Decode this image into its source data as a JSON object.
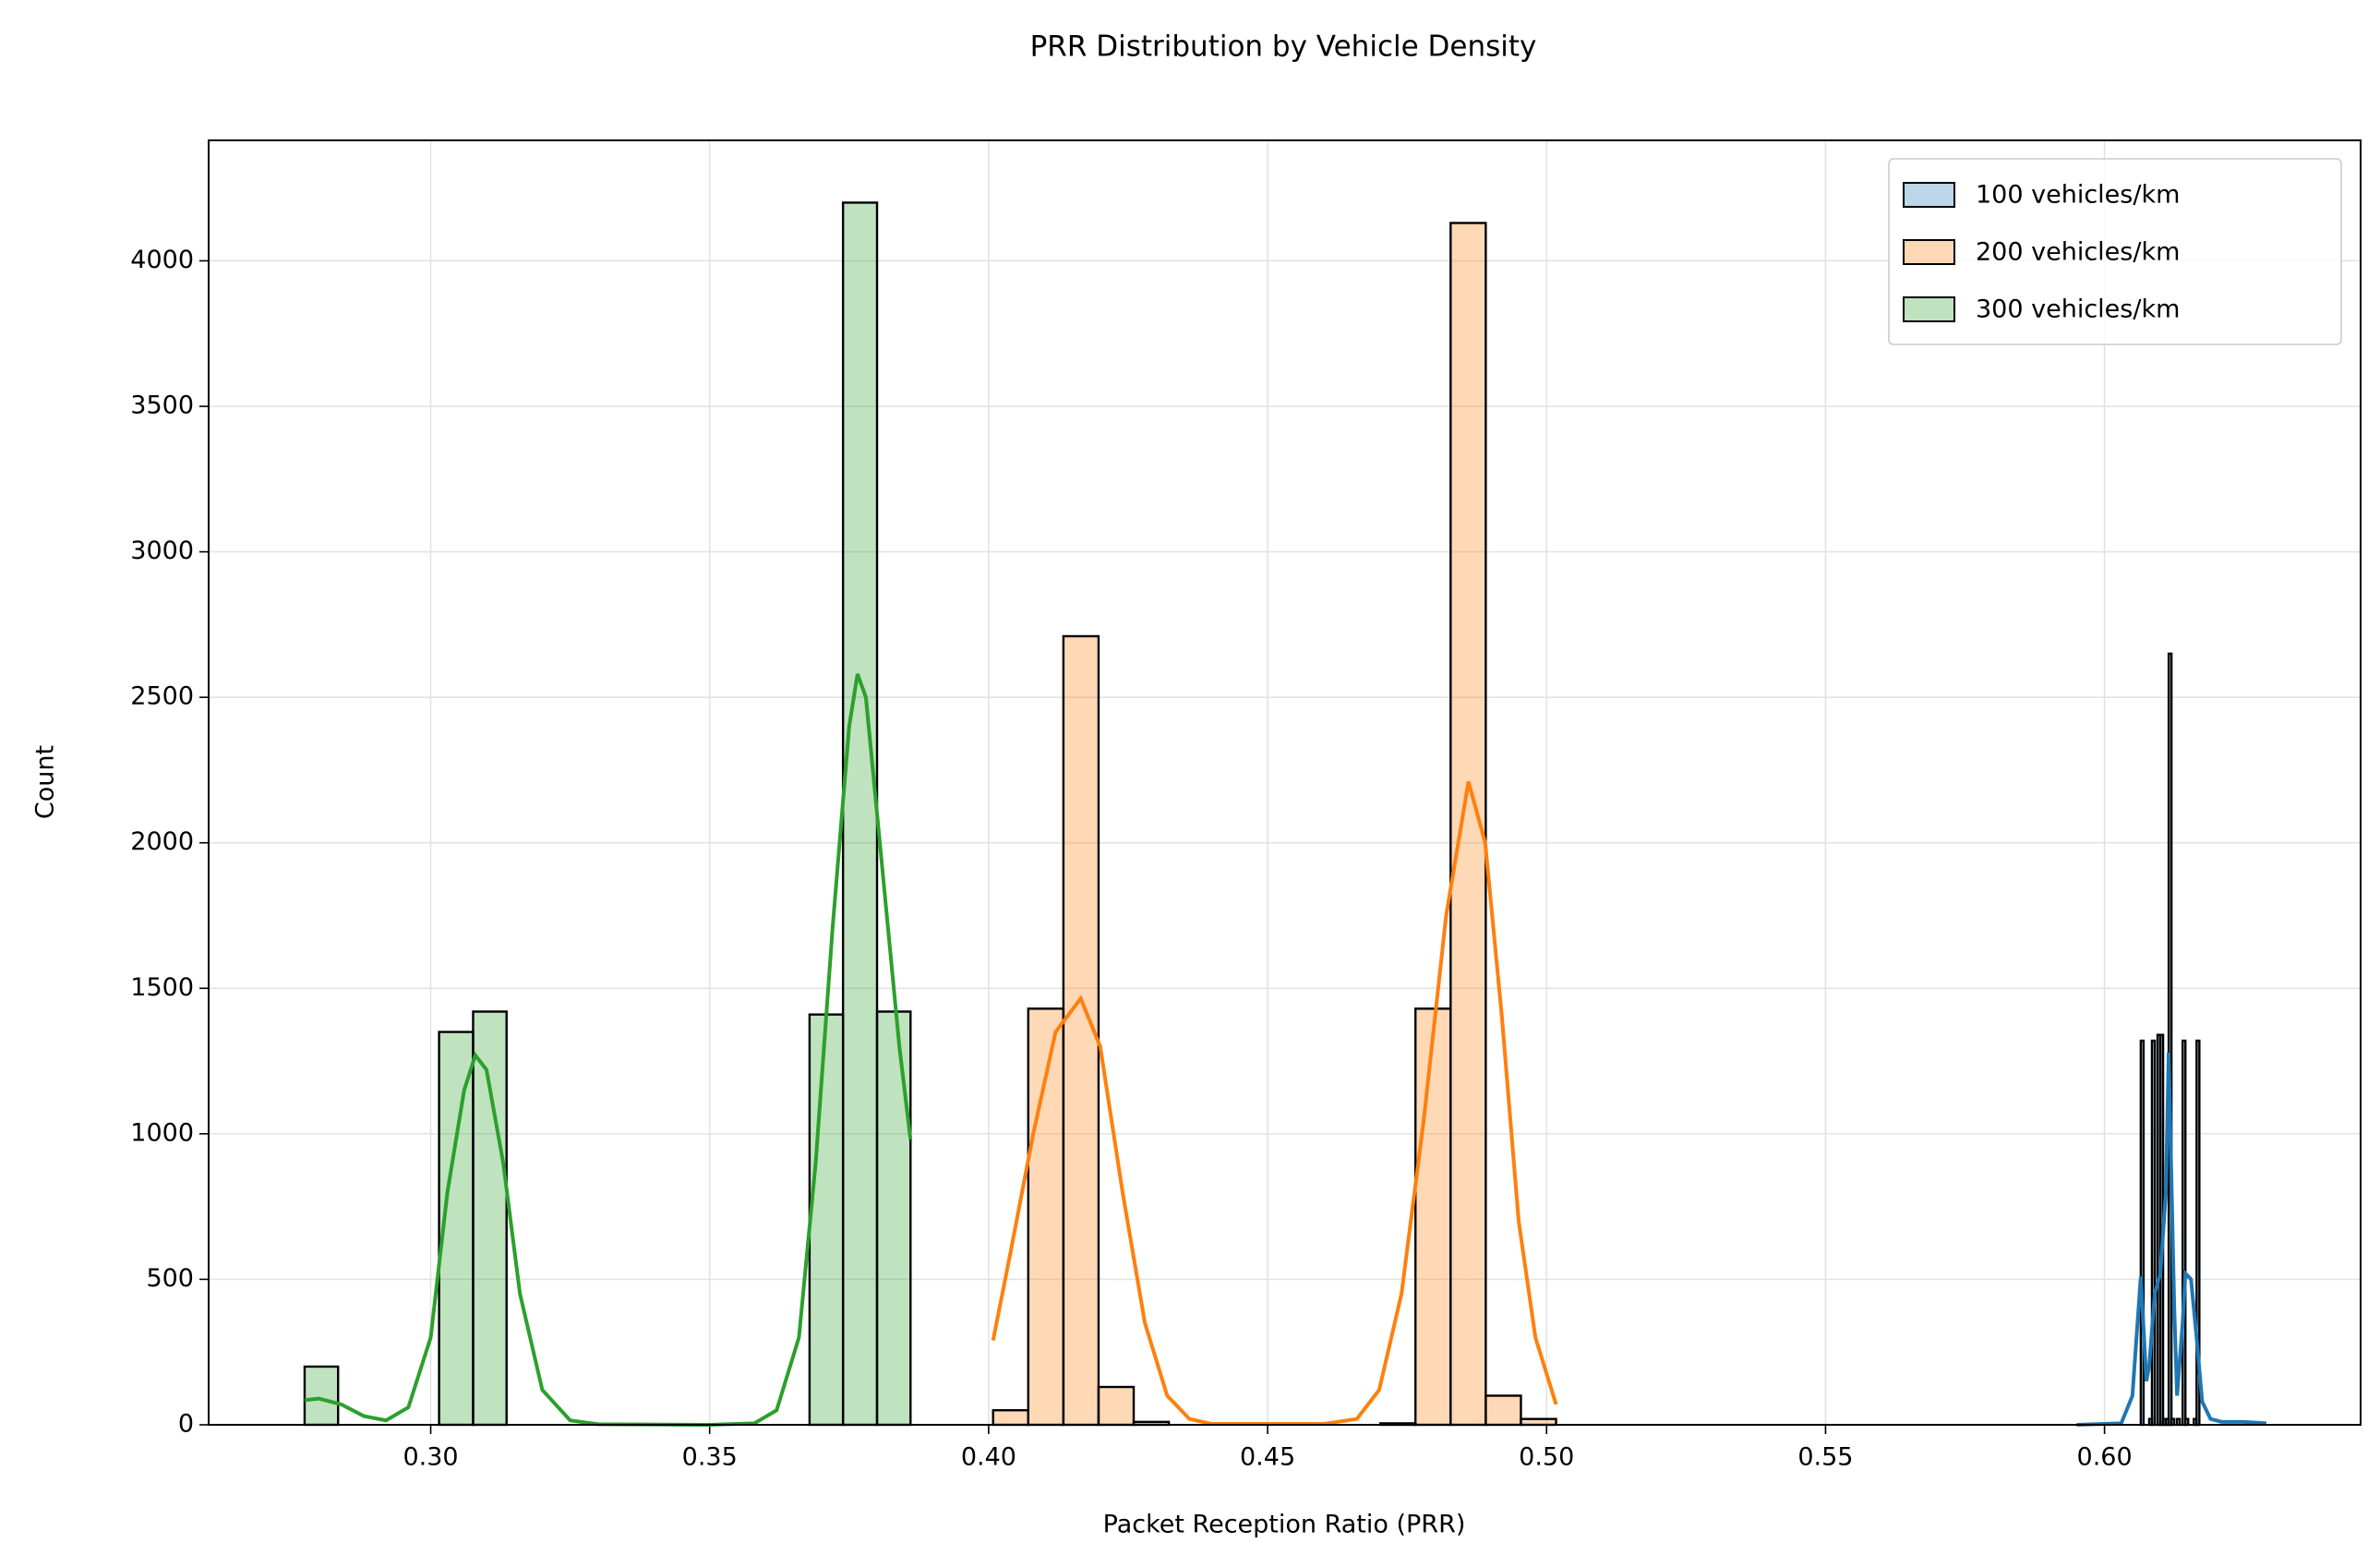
{
  "chart_data": {
    "type": "histogram",
    "title": "PRR Distribution by Vehicle Density",
    "xlabel": "Packet Reception Ratio (PRR)",
    "ylabel": "Count",
    "xlim": [
      0.2602,
      0.6459
    ],
    "ylim": [
      0,
      4414
    ],
    "xticks": [
      {
        "value": 0.3,
        "label": "0.30"
      },
      {
        "value": 0.35,
        "label": "0.35"
      },
      {
        "value": 0.4,
        "label": "0.40"
      },
      {
        "value": 0.45,
        "label": "0.45"
      },
      {
        "value": 0.5,
        "label": "0.50"
      },
      {
        "value": 0.55,
        "label": "0.55"
      },
      {
        "value": 0.6,
        "label": "0.60"
      }
    ],
    "yticks": [
      0,
      500,
      1000,
      1500,
      2000,
      2500,
      3000,
      3500,
      4000
    ],
    "grid": true,
    "legend": "upper right",
    "edgecolor": "#000000",
    "alpha": 0.3,
    "series": [
      {
        "name": "100 vehicles/km",
        "color": "#1f77b4",
        "bins": [
          0.606,
          0.6065,
          0.607,
          0.6075,
          0.608,
          0.6085,
          0.609,
          0.6095,
          0.61,
          0.6105,
          0.611,
          0.6115,
          0.612,
          0.6125,
          0.613,
          0.6135,
          0.614,
          0.6145,
          0.615,
          0.6155,
          0.616,
          0.6165,
          0.617
        ],
        "counts": [
          0,
          1320,
          0,
          0,
          20,
          1320,
          0,
          1340,
          1340,
          20,
          20,
          2650,
          20,
          0,
          20,
          0,
          1320,
          20,
          0,
          0,
          20,
          1320
        ],
        "kde": {
          "x": [
            0.595,
            0.603,
            0.605,
            0.6065,
            0.6075,
            0.608,
            0.609,
            0.61,
            0.611,
            0.6115,
            0.6125,
            0.613,
            0.614,
            0.6145,
            0.6155,
            0.6165,
            0.6175,
            0.619,
            0.621,
            0.625,
            0.629
          ],
          "y": [
            0,
            5,
            100,
            510,
            150,
            200,
            450,
            520,
            800,
            1280,
            400,
            100,
            350,
            520,
            500,
            300,
            80,
            20,
            10,
            10,
            5
          ]
        }
      },
      {
        "name": "200 vehicles/km",
        "color": "#ff7f0e",
        "bins": [
          0.4008,
          0.4071,
          0.4134,
          0.4197,
          0.426,
          0.4323,
          0.4386,
          0.4449,
          0.4512,
          0.4575,
          0.4639,
          0.4702,
          0.4765,
          0.4828,
          0.4891,
          0.4954,
          0.5017
        ],
        "counts": [
          50,
          1430,
          2710,
          130,
          10,
          0,
          0,
          0,
          0,
          0,
          0,
          5,
          1430,
          4130,
          100,
          20
        ],
        "kde": {
          "x": [
            0.4008,
            0.404,
            0.408,
            0.412,
            0.4165,
            0.42,
            0.424,
            0.428,
            0.432,
            0.436,
            0.44,
            0.46,
            0.466,
            0.47,
            0.474,
            0.478,
            0.482,
            0.486,
            0.489,
            0.492,
            0.495,
            0.498,
            0.5017
          ],
          "y": [
            290,
            600,
            1000,
            1350,
            1465,
            1300,
            800,
            350,
            100,
            20,
            3,
            3,
            20,
            120,
            450,
            1050,
            1750,
            2210,
            2000,
            1400,
            700,
            300,
            70
          ]
        }
      },
      {
        "name": "300 vehicles/km",
        "color": "#2ca02c",
        "bins": [
          0.2774,
          0.2834,
          0.2895,
          0.2955,
          0.3015,
          0.3076,
          0.3136,
          0.3196,
          0.3257,
          0.3317,
          0.3377,
          0.3438,
          0.3498,
          0.3558,
          0.3619,
          0.3679,
          0.3739,
          0.38,
          0.386
        ],
        "counts": [
          200,
          0,
          0,
          0,
          1350,
          1420,
          0,
          0,
          0,
          0,
          0,
          0,
          0,
          0,
          0,
          1410,
          4200,
          1420
        ],
        "kde": {
          "x": [
            0.2774,
            0.28,
            0.284,
            0.288,
            0.292,
            0.296,
            0.3,
            0.303,
            0.306,
            0.308,
            0.31,
            0.313,
            0.316,
            0.32,
            0.325,
            0.33,
            0.35,
            0.358,
            0.362,
            0.366,
            0.369,
            0.372,
            0.375,
            0.3765,
            0.378,
            0.381,
            0.384,
            0.386
          ],
          "y": [
            85,
            90,
            70,
            30,
            15,
            60,
            300,
            800,
            1150,
            1270,
            1220,
            900,
            450,
            120,
            15,
            2,
            0,
            5,
            50,
            300,
            900,
            1700,
            2400,
            2580,
            2500,
            1900,
            1300,
            980
          ]
        }
      }
    ]
  }
}
